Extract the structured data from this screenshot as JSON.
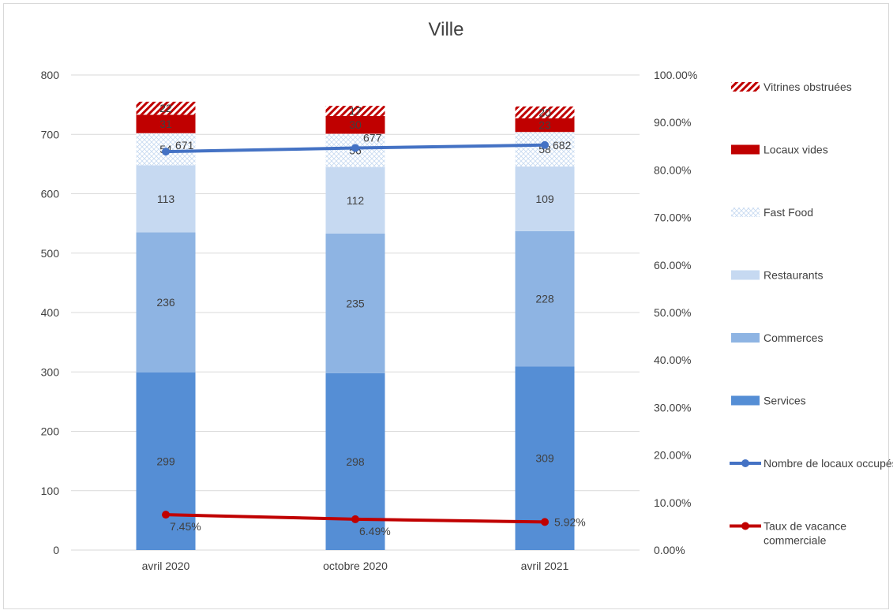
{
  "chart_data": {
    "type": "bar",
    "title": "Ville",
    "categories": [
      "avril 2020",
      "octobre 2020",
      "avril 2021"
    ],
    "ylim": [
      0,
      800
    ],
    "y_ticks": [
      "0",
      "100",
      "200",
      "300",
      "400",
      "500",
      "600",
      "700",
      "800"
    ],
    "y2lim": [
      0,
      1
    ],
    "y2_ticks": [
      "0.00%",
      "10.00%",
      "20.00%",
      "30.00%",
      "40.00%",
      "50.00%",
      "60.00%",
      "70.00%",
      "80.00%",
      "90.00%",
      "100.00%"
    ],
    "grid": true,
    "legend_position": "right",
    "stacked_series": [
      {
        "name": "Services",
        "color": "#558ED5",
        "values": [
          299,
          298,
          309
        ]
      },
      {
        "name": "Commerces",
        "color": "#8EB4E3",
        "values": [
          236,
          235,
          228
        ]
      },
      {
        "name": "Restaurants",
        "color": "#C6D9F1",
        "values": [
          113,
          112,
          109
        ]
      },
      {
        "name": "Fast Food",
        "color": "#DCE6F2",
        "pattern": "crosshatch",
        "values": [
          54,
          56,
          58
        ]
      },
      {
        "name": "Locaux vides",
        "color": "#C00000",
        "values": [
          31,
          30,
          23
        ]
      },
      {
        "name": "Vitrines obstruées",
        "color": "#C00000",
        "pattern": "diagonal",
        "values": [
          22,
          17,
          20
        ]
      }
    ],
    "line_series": [
      {
        "name": "Nombre de locaux occupés",
        "color": "#4472C4",
        "axis": "left",
        "values": [
          671,
          677,
          682
        ],
        "labels": [
          "671",
          "677",
          "682"
        ]
      },
      {
        "name": "Taux de vacance commerciale",
        "color": "#C00000",
        "axis": "right",
        "values": [
          0.0745,
          0.0649,
          0.0592
        ],
        "labels": [
          "7.45%",
          "6.49%",
          "5.92%"
        ]
      }
    ],
    "legend": [
      {
        "label": "Vitrines obstruées"
      },
      {
        "label": "Locaux vides"
      },
      {
        "label": "Fast Food"
      },
      {
        "label": "Restaurants"
      },
      {
        "label": "Commerces"
      },
      {
        "label": "Services"
      },
      {
        "label": "Nombre de locaux occupés"
      },
      {
        "label": "Taux de vacance commerciale"
      }
    ]
  }
}
